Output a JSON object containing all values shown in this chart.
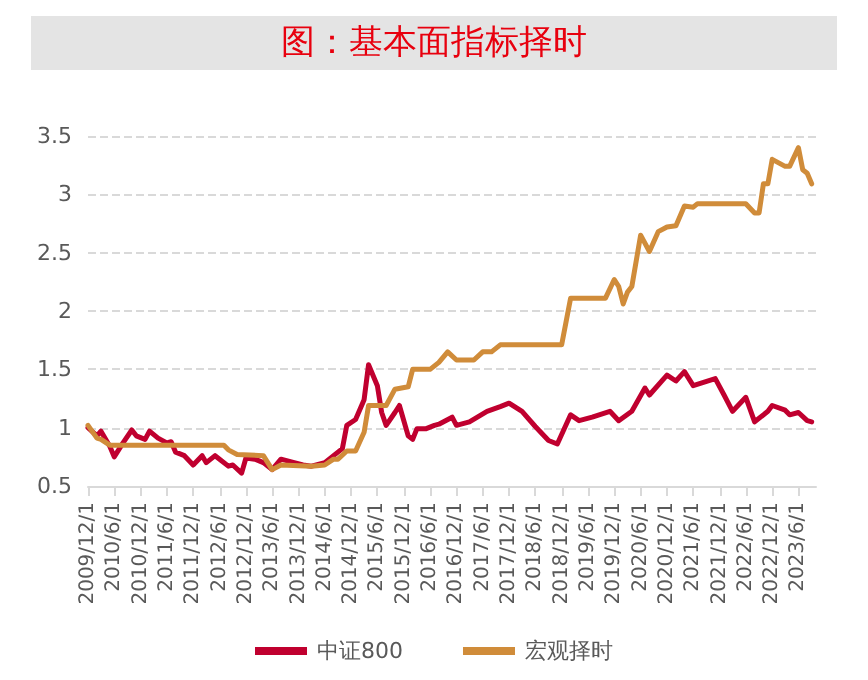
{
  "chart_data": {
    "type": "line",
    "title": "图：基本面指标择时",
    "xlim": [
      "2009-12-01",
      "2023-10-01"
    ],
    "xticks": [
      {
        "value": "2009-12-01",
        "label": "2009/12/1"
      },
      {
        "value": "2010-06-01",
        "label": "2010/6/1"
      },
      {
        "value": "2010-12-01",
        "label": "2010/12/1"
      },
      {
        "value": "2011-06-01",
        "label": "2011/6/1"
      },
      {
        "value": "2011-12-01",
        "label": "2011/12/1"
      },
      {
        "value": "2012-06-01",
        "label": "2012/6/1"
      },
      {
        "value": "2012-12-01",
        "label": "2012/12/1"
      },
      {
        "value": "2013-06-01",
        "label": "2013/6/1"
      },
      {
        "value": "2013-12-01",
        "label": "2013/12/1"
      },
      {
        "value": "2014-06-01",
        "label": "2014/6/1"
      },
      {
        "value": "2014-12-01",
        "label": "2014/12/1"
      },
      {
        "value": "2015-06-01",
        "label": "2015/6/1"
      },
      {
        "value": "2015-12-01",
        "label": "2015/12/1"
      },
      {
        "value": "2016-06-01",
        "label": "2016/6/1"
      },
      {
        "value": "2016-12-01",
        "label": "2016/12/1"
      },
      {
        "value": "2017-06-01",
        "label": "2017/6/1"
      },
      {
        "value": "2017-12-01",
        "label": "2017/12/1"
      },
      {
        "value": "2018-06-01",
        "label": "2018/6/1"
      },
      {
        "value": "2018-12-01",
        "label": "2018/12/1"
      },
      {
        "value": "2019-06-01",
        "label": "2019/6/1"
      },
      {
        "value": "2019-12-01",
        "label": "2019/12/1"
      },
      {
        "value": "2020-06-01",
        "label": "2020/6/1"
      },
      {
        "value": "2020-12-01",
        "label": "2020/12/1"
      },
      {
        "value": "2021-06-01",
        "label": "2021/6/1"
      },
      {
        "value": "2021-12-01",
        "label": "2021/12/1"
      },
      {
        "value": "2022-06-01",
        "label": "2022/6/1"
      },
      {
        "value": "2022-12-01",
        "label": "2022/12/1"
      },
      {
        "value": "2023-06-01",
        "label": "2023/6/1"
      }
    ],
    "ylim": [
      0.5,
      3.5
    ],
    "yticks": [
      0.5,
      1,
      1.5,
      2,
      2.5,
      3,
      3.5
    ],
    "grid": "y",
    "legend": "bottom",
    "marker": "none",
    "line_style": "solid",
    "series": [
      {
        "name": "中证800",
        "color": "#c0002f",
        "x": [
          "2009-12",
          "2010-02",
          "2010-03",
          "2010-05",
          "2010-06",
          "2010-08",
          "2010-10",
          "2010-11",
          "2011-01",
          "2011-02",
          "2011-04",
          "2011-06",
          "2011-07",
          "2011-08",
          "2011-10",
          "2011-12",
          "2012-02",
          "2012-03",
          "2012-05",
          "2012-06",
          "2012-08",
          "2012-09",
          "2012-11",
          "2012-12",
          "2013-02",
          "2013-04",
          "2013-06",
          "2013-08",
          "2013-11",
          "2014-01",
          "2014-03",
          "2014-06",
          "2014-08",
          "2014-10",
          "2014-11",
          "2015-01",
          "2015-03",
          "2015-04",
          "2015-06",
          "2015-07",
          "2015-08",
          "2015-10",
          "2015-11",
          "2016-01",
          "2016-02",
          "2016-03",
          "2016-05",
          "2016-07",
          "2016-08",
          "2016-11",
          "2016-12",
          "2017-03",
          "2017-07",
          "2017-10",
          "2017-12",
          "2018-03",
          "2018-06",
          "2018-09",
          "2018-11",
          "2019-02",
          "2019-04",
          "2019-07",
          "2019-11",
          "2020-01",
          "2020-04",
          "2020-07",
          "2020-08",
          "2020-12",
          "2021-02",
          "2021-04",
          "2021-06",
          "2021-11",
          "2022-01",
          "2022-03",
          "2022-06",
          "2022-08",
          "2022-11",
          "2022-12",
          "2023-03",
          "2023-04",
          "2023-06",
          "2023-08",
          "2023-09"
        ],
        "values": [
          1.0,
          0.93,
          0.97,
          0.84,
          0.75,
          0.87,
          0.98,
          0.93,
          0.9,
          0.97,
          0.91,
          0.87,
          0.88,
          0.79,
          0.76,
          0.68,
          0.76,
          0.7,
          0.76,
          0.73,
          0.67,
          0.68,
          0.61,
          0.74,
          0.73,
          0.7,
          0.64,
          0.73,
          0.7,
          0.68,
          0.67,
          0.7,
          0.76,
          0.82,
          1.02,
          1.07,
          1.24,
          1.54,
          1.36,
          1.13,
          1.02,
          1.13,
          1.19,
          0.93,
          0.9,
          0.99,
          0.99,
          1.02,
          1.03,
          1.09,
          1.02,
          1.05,
          1.14,
          1.18,
          1.21,
          1.14,
          1.01,
          0.89,
          0.86,
          1.11,
          1.06,
          1.09,
          1.14,
          1.06,
          1.14,
          1.34,
          1.28,
          1.45,
          1.4,
          1.48,
          1.36,
          1.42,
          1.28,
          1.14,
          1.26,
          1.05,
          1.14,
          1.19,
          1.15,
          1.11,
          1.13,
          1.06,
          1.05
        ]
      },
      {
        "name": "宏观择时",
        "color": "#d08c3a",
        "x": [
          "2009-12",
          "2010-02",
          "2010-03",
          "2010-05",
          "2012-07",
          "2012-08",
          "2012-10",
          "2013-04",
          "2013-06",
          "2013-08",
          "2014-03",
          "2014-06",
          "2014-08",
          "2014-09",
          "2014-11",
          "2015-01",
          "2015-03",
          "2015-04",
          "2015-08",
          "2015-10",
          "2016-01",
          "2016-02",
          "2016-06",
          "2016-08",
          "2016-10",
          "2016-12",
          "2017-04",
          "2017-06",
          "2017-08",
          "2017-10",
          "2018-12",
          "2019-02",
          "2019-10",
          "2019-12",
          "2020-01",
          "2020-02",
          "2020-03",
          "2020-04",
          "2020-06",
          "2020-08",
          "2020-10",
          "2020-12",
          "2021-02",
          "2021-04",
          "2021-06",
          "2021-07",
          "2022-06",
          "2022-08",
          "2022-09",
          "2022-10",
          "2022-11",
          "2022-12",
          "2023-03",
          "2023-04",
          "2023-06",
          "2023-07",
          "2023-08",
          "2023-09"
        ],
        "values": [
          1.02,
          0.91,
          0.9,
          0.85,
          0.85,
          0.81,
          0.77,
          0.76,
          0.64,
          0.68,
          0.67,
          0.68,
          0.73,
          0.73,
          0.8,
          0.8,
          0.96,
          1.19,
          1.19,
          1.33,
          1.35,
          1.5,
          1.5,
          1.56,
          1.65,
          1.58,
          1.58,
          1.65,
          1.65,
          1.71,
          1.71,
          2.11,
          2.11,
          2.27,
          2.21,
          2.06,
          2.16,
          2.21,
          2.65,
          2.51,
          2.68,
          2.72,
          2.73,
          2.9,
          2.89,
          2.92,
          2.92,
          2.84,
          2.84,
          3.09,
          3.09,
          3.3,
          3.24,
          3.24,
          3.4,
          3.21,
          3.18,
          3.09
        ]
      }
    ]
  }
}
